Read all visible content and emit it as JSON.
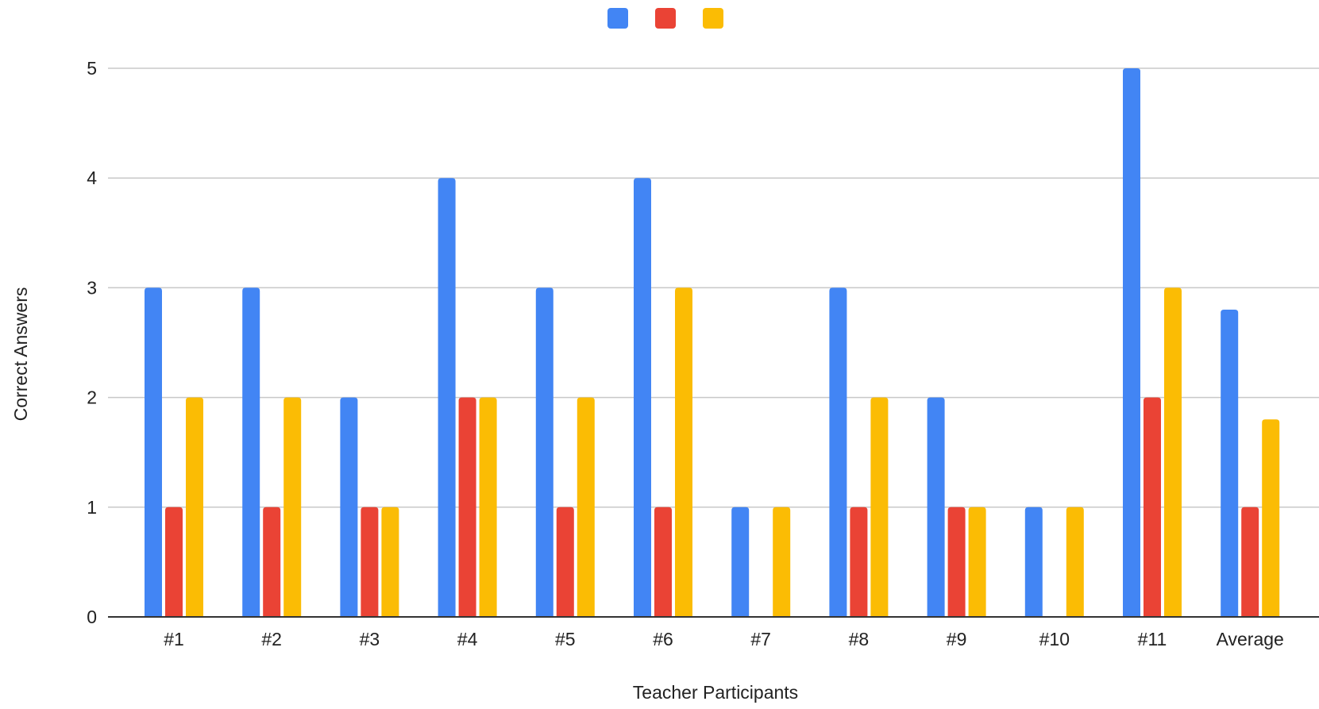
{
  "chart_data": {
    "type": "bar",
    "title": "",
    "xlabel": "Teacher Participants",
    "ylabel": "Correct Answers",
    "categories": [
      "#1",
      "#2",
      "#3",
      "#4",
      "#5",
      "#6",
      "#7",
      "#8",
      "#9",
      "#10",
      "#11",
      "Average"
    ],
    "series": [
      {
        "color": "#4285f4",
        "values": [
          3,
          3,
          2,
          4,
          3,
          4,
          1,
          3,
          2,
          1,
          5,
          2.8
        ]
      },
      {
        "color": "#ea4335",
        "values": [
          1,
          1,
          1,
          2,
          1,
          1,
          0,
          1,
          1,
          0,
          2,
          1
        ]
      },
      {
        "color": "#fbbc04",
        "values": [
          2,
          2,
          1,
          2,
          2,
          3,
          1,
          2,
          1,
          1,
          3,
          1.8
        ]
      }
    ],
    "ylim": [
      0,
      5
    ],
    "yticks": [
      "0",
      "1",
      "2",
      "3",
      "4",
      "5"
    ],
    "grid": true,
    "legend_position": "top-center"
  }
}
